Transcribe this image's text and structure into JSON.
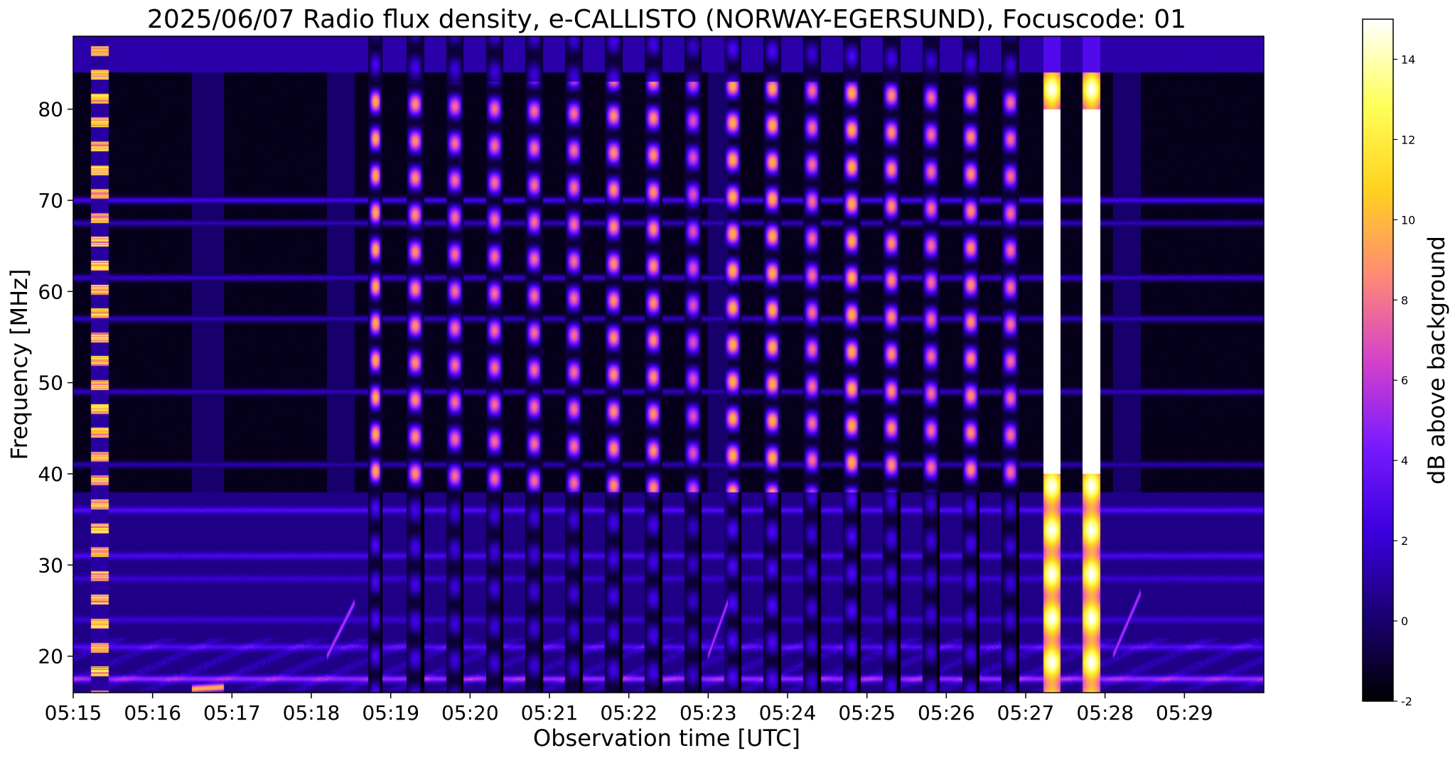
{
  "chart_data": {
    "type": "heatmap",
    "title": "2025/06/07  Radio flux density, e-CALLISTO (NORWAY-EGERSUND), Focuscode: 01",
    "xlabel": "Observation time [UTC]",
    "ylabel": "Frequency [MHz]",
    "x_ticks": [
      "05:15",
      "05:16",
      "05:17",
      "05:18",
      "05:19",
      "05:20",
      "05:21",
      "05:22",
      "05:23",
      "05:24",
      "05:25",
      "05:26",
      "05:27",
      "05:28",
      "05:29"
    ],
    "x_range_minutes": [
      0,
      15
    ],
    "y_ticks": [
      20,
      30,
      40,
      50,
      60,
      70,
      80
    ],
    "ylim": [
      16,
      88
    ],
    "colorbar": {
      "label": "dB above background",
      "ticks": [
        -2,
        0,
        2,
        4,
        6,
        8,
        10,
        12,
        14
      ],
      "range": [
        -2,
        15
      ],
      "colormap": "gnuplot2",
      "stops": [
        "#000000",
        "#1a0073",
        "#3c00e0",
        "#7a1aff",
        "#d642c9",
        "#ff8a75",
        "#ffd21e",
        "#ffff5a",
        "#ffffff"
      ]
    },
    "background_level_db": 0.5,
    "high_band_top_mhz": 84,
    "high_band_level_db": 1.2,
    "quiet_band_mhz": [
      38,
      84
    ],
    "quiet_band_level_db": -1.5,
    "horizontal_lines": [
      {
        "mhz": 70,
        "db": 2.5
      },
      {
        "mhz": 67.5,
        "db": 1.5
      },
      {
        "mhz": 61.5,
        "db": 1.8
      },
      {
        "mhz": 57,
        "db": 1.5
      },
      {
        "mhz": 49,
        "db": 1.5
      },
      {
        "mhz": 41,
        "db": 1.2
      },
      {
        "mhz": 36,
        "db": 3.0
      },
      {
        "mhz": 31,
        "db": 2.8
      },
      {
        "mhz": 28.5,
        "db": 2.0
      },
      {
        "mhz": 24,
        "db": 2.0
      },
      {
        "mhz": 21,
        "db": 3.0
      },
      {
        "mhz": 17.5,
        "db": 5.0
      }
    ],
    "bursts": [
      {
        "start_min": 0.22,
        "end_min": 0.45,
        "kind": "striped",
        "peak_db": 13
      },
      {
        "start_min": 3.72,
        "end_min": 3.9,
        "kind": "pulse",
        "peak_db": 11
      },
      {
        "start_min": 4.2,
        "end_min": 4.42,
        "kind": "pulse",
        "peak_db": 10
      },
      {
        "start_min": 4.7,
        "end_min": 4.92,
        "kind": "pulse",
        "peak_db": 9
      },
      {
        "start_min": 5.2,
        "end_min": 5.42,
        "kind": "pulse",
        "peak_db": 9
      },
      {
        "start_min": 5.7,
        "end_min": 5.92,
        "kind": "pulse",
        "peak_db": 9
      },
      {
        "start_min": 6.2,
        "end_min": 6.42,
        "kind": "pulse",
        "peak_db": 9
      },
      {
        "start_min": 6.7,
        "end_min": 6.92,
        "kind": "pulse",
        "peak_db": 10
      },
      {
        "start_min": 7.2,
        "end_min": 7.42,
        "kind": "pulse",
        "peak_db": 10
      },
      {
        "start_min": 7.7,
        "end_min": 7.92,
        "kind": "pulse",
        "peak_db": 8
      },
      {
        "start_min": 8.2,
        "end_min": 8.42,
        "kind": "pulse",
        "peak_db": 11
      },
      {
        "start_min": 8.7,
        "end_min": 8.92,
        "kind": "pulse",
        "peak_db": 11
      },
      {
        "start_min": 9.2,
        "end_min": 9.42,
        "kind": "pulse",
        "peak_db": 9
      },
      {
        "start_min": 9.7,
        "end_min": 9.92,
        "kind": "pulse",
        "peak_db": 11
      },
      {
        "start_min": 10.2,
        "end_min": 10.42,
        "kind": "pulse",
        "peak_db": 10
      },
      {
        "start_min": 10.7,
        "end_min": 10.92,
        "kind": "pulse",
        "peak_db": 9
      },
      {
        "start_min": 11.2,
        "end_min": 11.42,
        "kind": "pulse",
        "peak_db": 10
      },
      {
        "start_min": 11.7,
        "end_min": 11.92,
        "kind": "pulse",
        "peak_db": 9
      },
      {
        "start_min": 12.22,
        "end_min": 12.44,
        "kind": "bright",
        "peak_db": 15
      },
      {
        "start_min": 12.72,
        "end_min": 12.94,
        "kind": "bright",
        "peak_db": 15
      }
    ],
    "drifting_features": [
      {
        "t0": 3.2,
        "f0": 20,
        "t1": 3.55,
        "f1": 26,
        "db": 6
      },
      {
        "t0": 8.0,
        "f0": 20,
        "t1": 8.25,
        "f1": 26,
        "db": 6
      },
      {
        "t0": 13.1,
        "f0": 20,
        "t1": 13.45,
        "f1": 27,
        "db": 6
      },
      {
        "t0": 1.5,
        "f0": 16.4,
        "t1": 1.9,
        "f1": 16.6,
        "db": 10
      }
    ]
  }
}
